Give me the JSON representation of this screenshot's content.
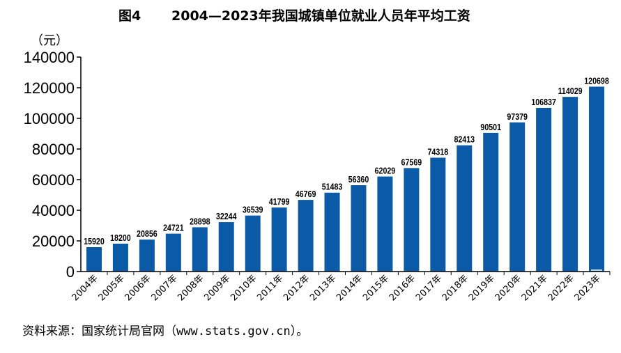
{
  "figure": {
    "number": "图4",
    "title": "2004—2023年我国城镇单位就业人员年平均工资",
    "unit": "（元）",
    "source": "资料来源：国家统计局官网（www.stats.gov.cn）。"
  },
  "colors": {
    "bar": "#0b5aa8",
    "axis": "#000000"
  },
  "chart_data": {
    "type": "bar",
    "title": "2004—2023年我国城镇单位就业人员年平均工资",
    "xlabel": "",
    "ylabel": "（元）",
    "ylim": [
      0,
      140000
    ],
    "yticks": [
      0,
      20000,
      40000,
      60000,
      80000,
      100000,
      120000,
      140000
    ],
    "grid": false,
    "categories": [
      "2004年",
      "2005年",
      "2006年",
      "2007年",
      "2008年",
      "2009年",
      "2010年",
      "2011年",
      "2012年",
      "2013年",
      "2014年",
      "2015年",
      "2016年",
      "2017年",
      "2018年",
      "2019年",
      "2020年",
      "2021年",
      "2022年",
      "2023年"
    ],
    "values": [
      15920,
      18200,
      20856,
      24721,
      28898,
      32244,
      36539,
      41799,
      46769,
      51483,
      56360,
      62029,
      67569,
      74318,
      82413,
      90501,
      97379,
      106837,
      114029,
      120698
    ]
  }
}
